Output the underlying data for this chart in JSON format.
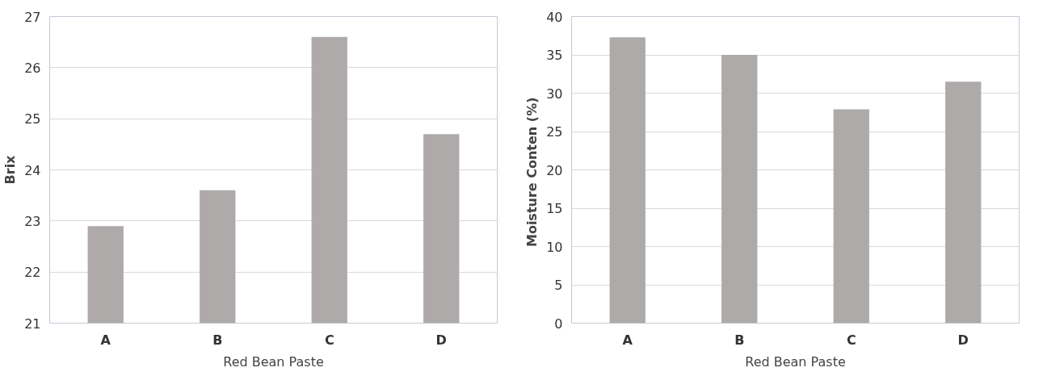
{
  "chart_data": [
    {
      "type": "bar",
      "xlabel": "Red Bean Paste",
      "ylabel": "Brix",
      "categories": [
        "A",
        "B",
        "C",
        "D"
      ],
      "values": [
        22.9,
        23.6,
        26.6,
        24.7
      ],
      "color": "#aeaaaa",
      "ylim": [
        21,
        27
      ],
      "yticks": [
        21,
        22,
        23,
        24,
        25,
        26,
        27
      ],
      "grid": "y"
    },
    {
      "type": "bar",
      "xlabel": "Red Bean Paste",
      "ylabel": "Moisture Conten  (%)",
      "categories": [
        "A",
        "B",
        "C",
        "D"
      ],
      "values": [
        37.3,
        35.0,
        27.9,
        31.5
      ],
      "color": "#aeaaaa",
      "ylim": [
        0,
        40
      ],
      "yticks": [
        0,
        5,
        10,
        15,
        20,
        25,
        30,
        35,
        40
      ],
      "grid": "y"
    }
  ]
}
